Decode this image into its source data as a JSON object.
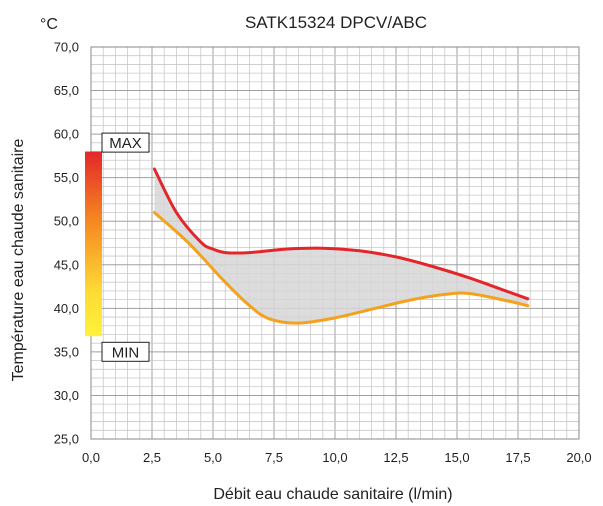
{
  "chart_data": {
    "type": "area",
    "title": "SATK15324 DPCV/ABC",
    "unit": "°C",
    "xlabel": "Débit eau chaude sanitaire (l/min)",
    "ylabel": "Température eau chaude sanitaire",
    "xlim": [
      0,
      20
    ],
    "ylim": [
      25,
      70
    ],
    "x_ticks": [
      "0,0",
      "2,5",
      "5,0",
      "7,5",
      "10,0",
      "12,5",
      "15,0",
      "17,5",
      "20,0"
    ],
    "y_ticks": [
      "70,0",
      "65,0",
      "60,0",
      "55,0",
      "50,0",
      "45,0",
      "40,0",
      "35,0",
      "30,0",
      "25,0"
    ],
    "grid": true,
    "series": [
      {
        "color": "#e3262b",
        "points": [
          [
            2.6,
            56.0
          ],
          [
            3.5,
            51.0
          ],
          [
            4.5,
            47.6
          ],
          [
            5.0,
            46.8
          ],
          [
            5.5,
            46.4
          ],
          [
            6.5,
            46.4
          ],
          [
            8.0,
            46.8
          ],
          [
            9.5,
            46.9
          ],
          [
            11.0,
            46.6
          ],
          [
            12.5,
            45.9
          ],
          [
            14.0,
            44.8
          ],
          [
            15.5,
            43.5
          ],
          [
            17.0,
            42.0
          ],
          [
            17.9,
            41.1
          ]
        ]
      },
      {
        "color": "#f4a11d",
        "points": [
          [
            2.6,
            51.0
          ],
          [
            4.0,
            47.5
          ],
          [
            5.5,
            43.0
          ],
          [
            6.5,
            40.3
          ],
          [
            7.3,
            38.8
          ],
          [
            8.5,
            38.3
          ],
          [
            10.0,
            38.9
          ],
          [
            11.5,
            39.9
          ],
          [
            13.0,
            40.9
          ],
          [
            14.5,
            41.6
          ],
          [
            15.5,
            41.7
          ],
          [
            17.0,
            40.9
          ],
          [
            17.9,
            40.3
          ]
        ]
      }
    ],
    "band_color": "#d6d6d6",
    "scale": {
      "max_label": "MAX",
      "min_label": "MIN",
      "max_value": 58.0,
      "min_value": 36.8,
      "gradient": [
        "#e3262b",
        "#f58220",
        "#fdd935",
        "#fff23a"
      ]
    }
  }
}
